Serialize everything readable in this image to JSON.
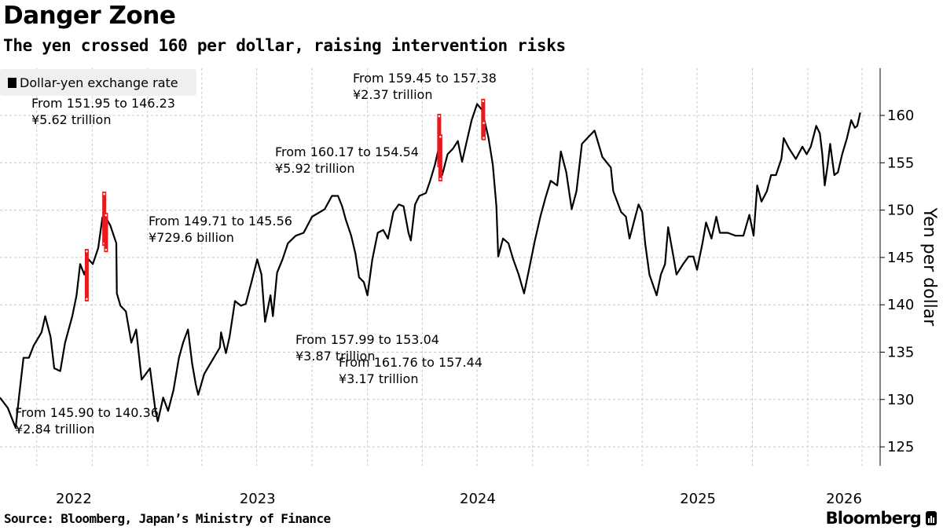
{
  "header": {
    "title": "Danger Zone",
    "subtitle": "The yen crossed 160 per dollar, raising intervention risks"
  },
  "footer": {
    "source": "Source: Bloomberg, Japan’s Ministry of Finance",
    "logo": "Bloomberg"
  },
  "colors": {
    "series": "#000000",
    "intervention": "#e8191d",
    "grid": "#c8c8c8",
    "legend_bg": "#efefef"
  },
  "chart_data": {
    "type": "line",
    "title": "Danger Zone",
    "subtitle": "The yen crossed 160 per dollar, raising intervention risks",
    "xlabel": "",
    "ylabel": "Yen per dollar",
    "ylim": [
      123,
      165
    ],
    "xlim": [
      "2022-05-01",
      "2026-05-01"
    ],
    "grid": true,
    "legend_placement": "top-left",
    "y_ticks": [
      125,
      130,
      135,
      140,
      145,
      150,
      155,
      160
    ],
    "x_ticks": [
      {
        "label": "2022",
        "year": 2022
      },
      {
        "label": "2023",
        "year": 2023
      },
      {
        "label": "2024",
        "year": 2024
      },
      {
        "label": "2025",
        "year": 2025
      },
      {
        "label": "2026",
        "year": 2026
      }
    ],
    "series": [
      {
        "name": "Dollar-yen exchange rate",
        "points": [
          [
            "2022-05-01",
            130.2
          ],
          [
            "2022-05-14",
            129.1
          ],
          [
            "2022-05-27",
            127.0
          ],
          [
            "2022-06-02",
            130.5
          ],
          [
            "2022-06-09",
            134.4
          ],
          [
            "2022-06-18",
            134.4
          ],
          [
            "2022-06-26",
            135.7
          ],
          [
            "2022-07-09",
            137.1
          ],
          [
            "2022-07-15",
            138.8
          ],
          [
            "2022-07-24",
            136.6
          ],
          [
            "2022-07-30",
            133.3
          ],
          [
            "2022-08-09",
            133.0
          ],
          [
            "2022-08-17",
            136.0
          ],
          [
            "2022-08-29",
            138.8
          ],
          [
            "2022-09-05",
            141.0
          ],
          [
            "2022-09-11",
            144.3
          ],
          [
            "2022-09-18",
            143.2
          ],
          [
            "2022-09-25",
            144.8
          ],
          [
            "2022-10-02",
            144.3
          ],
          [
            "2022-10-11",
            146.0
          ],
          [
            "2022-10-18",
            149.2
          ],
          [
            "2022-10-21",
            149.5
          ],
          [
            "2022-10-31",
            148.4
          ],
          [
            "2022-11-10",
            146.5
          ],
          [
            "2022-11-11",
            141.2
          ],
          [
            "2022-11-17",
            139.9
          ],
          [
            "2022-11-26",
            139.3
          ],
          [
            "2022-12-05",
            136.0
          ],
          [
            "2022-12-13",
            137.4
          ],
          [
            "2022-12-22",
            132.1
          ],
          [
            "2023-01-05",
            133.3
          ],
          [
            "2023-01-14",
            128.8
          ],
          [
            "2023-01-18",
            127.7
          ],
          [
            "2023-01-27",
            130.2
          ],
          [
            "2023-02-04",
            128.8
          ],
          [
            "2023-02-13",
            131.0
          ],
          [
            "2023-02-22",
            134.4
          ],
          [
            "2023-03-01",
            136.0
          ],
          [
            "2023-03-09",
            137.4
          ],
          [
            "2023-03-16",
            133.8
          ],
          [
            "2023-03-22",
            131.6
          ],
          [
            "2023-03-26",
            130.5
          ],
          [
            "2023-04-05",
            132.7
          ],
          [
            "2023-04-18",
            134.1
          ],
          [
            "2023-05-01",
            135.5
          ],
          [
            "2023-05-03",
            137.1
          ],
          [
            "2023-05-11",
            134.9
          ],
          [
            "2023-05-17",
            136.6
          ],
          [
            "2023-05-26",
            140.4
          ],
          [
            "2023-06-05",
            139.9
          ],
          [
            "2023-06-13",
            140.1
          ],
          [
            "2023-06-22",
            142.3
          ],
          [
            "2023-07-02",
            144.8
          ],
          [
            "2023-07-09",
            143.2
          ],
          [
            "2023-07-15",
            138.2
          ],
          [
            "2023-07-24",
            141.0
          ],
          [
            "2023-07-28",
            138.8
          ],
          [
            "2023-08-04",
            143.4
          ],
          [
            "2023-08-13",
            144.8
          ],
          [
            "2023-08-22",
            146.5
          ],
          [
            "2023-09-04",
            147.3
          ],
          [
            "2023-09-17",
            147.6
          ],
          [
            "2023-10-01",
            149.3
          ],
          [
            "2023-10-22",
            150.1
          ],
          [
            "2023-11-03",
            151.5
          ],
          [
            "2023-11-13",
            151.5
          ],
          [
            "2023-11-20",
            150.4
          ],
          [
            "2023-11-26",
            149.0
          ],
          [
            "2023-12-05",
            147.3
          ],
          [
            "2023-12-12",
            145.4
          ],
          [
            "2023-12-18",
            142.9
          ],
          [
            "2023-12-26",
            142.4
          ],
          [
            "2024-01-01",
            141.0
          ],
          [
            "2024-01-09",
            144.8
          ],
          [
            "2024-01-18",
            147.6
          ],
          [
            "2024-01-27",
            147.9
          ],
          [
            "2024-02-04",
            147.0
          ],
          [
            "2024-02-13",
            149.8
          ],
          [
            "2024-02-22",
            150.6
          ],
          [
            "2024-03-01",
            150.4
          ],
          [
            "2024-03-09",
            147.6
          ],
          [
            "2024-03-13",
            146.8
          ],
          [
            "2024-03-20",
            150.6
          ],
          [
            "2024-03-27",
            151.5
          ],
          [
            "2024-04-07",
            151.8
          ],
          [
            "2024-04-14",
            153.1
          ],
          [
            "2024-04-22",
            154.8
          ],
          [
            "2024-04-27",
            156.2
          ],
          [
            "2024-05-04",
            153.7
          ],
          [
            "2024-05-13",
            155.9
          ],
          [
            "2024-05-22",
            156.5
          ],
          [
            "2024-05-30",
            157.3
          ],
          [
            "2024-06-06",
            155.1
          ],
          [
            "2024-06-15",
            157.6
          ],
          [
            "2024-06-22",
            159.5
          ],
          [
            "2024-07-01",
            161.2
          ],
          [
            "2024-07-09",
            160.6
          ],
          [
            "2024-07-20",
            157.6
          ],
          [
            "2024-07-27",
            154.8
          ],
          [
            "2024-08-02",
            150.4
          ],
          [
            "2024-08-05",
            145.1
          ],
          [
            "2024-08-13",
            147.0
          ],
          [
            "2024-08-22",
            146.5
          ],
          [
            "2024-08-30",
            144.8
          ],
          [
            "2024-09-08",
            143.2
          ],
          [
            "2024-09-17",
            141.2
          ],
          [
            "2024-09-25",
            143.7
          ],
          [
            "2024-10-05",
            146.8
          ],
          [
            "2024-10-14",
            149.3
          ],
          [
            "2024-10-22",
            151.2
          ],
          [
            "2024-10-31",
            153.1
          ],
          [
            "2024-11-11",
            152.6
          ],
          [
            "2024-11-17",
            156.2
          ],
          [
            "2024-11-26",
            154.0
          ],
          [
            "2024-12-05",
            150.1
          ],
          [
            "2024-12-13",
            152.0
          ],
          [
            "2024-12-22",
            157.0
          ],
          [
            "2024-12-31",
            157.6
          ],
          [
            "2025-01-12",
            158.4
          ],
          [
            "2025-01-25",
            155.6
          ],
          [
            "2025-02-08",
            154.5
          ],
          [
            "2025-02-12",
            152.0
          ],
          [
            "2025-02-25",
            149.8
          ],
          [
            "2025-03-05",
            149.3
          ],
          [
            "2025-03-11",
            147.0
          ],
          [
            "2025-03-18",
            148.7
          ],
          [
            "2025-03-26",
            150.6
          ],
          [
            "2025-04-01",
            149.8
          ],
          [
            "2025-04-06",
            146.5
          ],
          [
            "2025-04-13",
            143.2
          ],
          [
            "2025-04-19",
            142.1
          ],
          [
            "2025-04-25",
            141.0
          ],
          [
            "2025-05-02",
            143.2
          ],
          [
            "2025-05-09",
            144.3
          ],
          [
            "2025-05-14",
            148.2
          ],
          [
            "2025-05-22",
            145.4
          ],
          [
            "2025-05-28",
            143.2
          ],
          [
            "2025-06-08",
            144.3
          ],
          [
            "2025-06-17",
            145.1
          ],
          [
            "2025-06-25",
            145.1
          ],
          [
            "2025-07-01",
            143.7
          ],
          [
            "2025-07-10",
            146.5
          ],
          [
            "2025-07-16",
            148.7
          ],
          [
            "2025-07-25",
            147.0
          ],
          [
            "2025-08-02",
            149.3
          ],
          [
            "2025-08-08",
            147.6
          ],
          [
            "2025-08-21",
            147.6
          ],
          [
            "2025-09-03",
            147.3
          ],
          [
            "2025-09-16",
            147.3
          ],
          [
            "2025-09-26",
            149.5
          ],
          [
            "2025-10-03",
            147.3
          ],
          [
            "2025-10-09",
            152.6
          ],
          [
            "2025-10-16",
            150.9
          ],
          [
            "2025-10-25",
            152.0
          ],
          [
            "2025-11-01",
            153.7
          ],
          [
            "2025-11-09",
            153.7
          ],
          [
            "2025-11-18",
            155.4
          ],
          [
            "2025-11-22",
            157.6
          ],
          [
            "2025-12-01",
            156.5
          ],
          [
            "2025-12-12",
            155.4
          ],
          [
            "2025-12-23",
            156.7
          ],
          [
            "2025-12-30",
            155.9
          ],
          [
            "2026-01-06",
            156.7
          ],
          [
            "2026-01-15",
            158.9
          ],
          [
            "2026-01-21",
            158.1
          ],
          [
            "2026-01-25",
            155.9
          ],
          [
            "2026-01-29",
            152.6
          ],
          [
            "2026-02-03",
            154.8
          ],
          [
            "2026-02-07",
            157.0
          ],
          [
            "2026-02-14",
            153.7
          ],
          [
            "2026-02-20",
            154.0
          ],
          [
            "2026-02-27",
            155.9
          ],
          [
            "2026-03-07",
            157.6
          ],
          [
            "2026-03-14",
            159.5
          ],
          [
            "2026-03-20",
            158.7
          ],
          [
            "2026-03-24",
            158.9
          ],
          [
            "2026-03-29",
            160.3
          ]
        ]
      }
    ],
    "interventions": [
      {
        "date": "2022-09-22",
        "from": 145.9,
        "to": 140.36,
        "line1": "From 145.90 to 140.36",
        "line2": "¥2.84 trillion"
      },
      {
        "date": "2022-10-21",
        "from": 151.95,
        "to": 146.23,
        "line1": "From 151.95 to 146.23",
        "line2": "¥5.62 trillion"
      },
      {
        "date": "2022-10-24",
        "from": 149.71,
        "to": 145.56,
        "line1": "From 149.71 to 145.56",
        "line2": "¥729.6 billion"
      },
      {
        "date": "2024-04-29",
        "from": 160.17,
        "to": 154.54,
        "line1": "From 160.17 to 154.54",
        "line2": "¥5.92 trillion"
      },
      {
        "date": "2024-05-01",
        "from": 157.99,
        "to": 153.04,
        "line1": "From 157.99 to 153.04",
        "line2": "¥3.87 trillion"
      },
      {
        "date": "2024-07-11",
        "from": 161.76,
        "to": 157.44,
        "line1": "From 161.76 to 157.44",
        "line2": "¥3.17 trillion"
      },
      {
        "date": "2024-07-12",
        "from": 159.45,
        "to": 157.38,
        "line1": "From 159.45 to 157.38",
        "line2": "¥2.37 trillion"
      }
    ]
  }
}
